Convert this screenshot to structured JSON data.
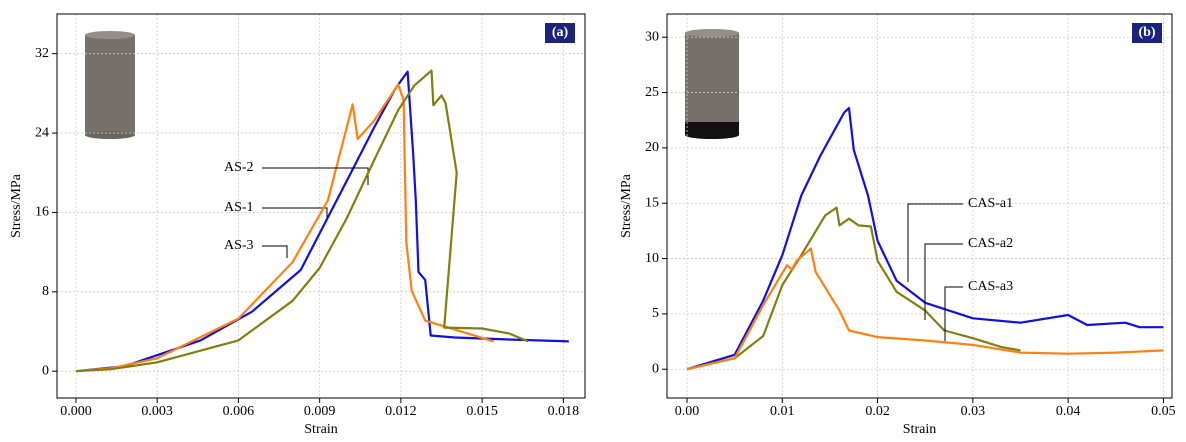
{
  "chart_data": [
    {
      "type": "line",
      "panel_label": "(a)",
      "x_label": "Strain",
      "y_label": "Stress/MPa",
      "xlim": [
        -0.0007,
        0.0188
      ],
      "ylim": [
        -2.7,
        36
      ],
      "xticks": [
        {
          "value": 0,
          "label": "0.000"
        },
        {
          "value": 0.003,
          "label": "0.003"
        },
        {
          "value": 0.006,
          "label": "0.006"
        },
        {
          "value": 0.009,
          "label": "0.009"
        },
        {
          "value": 0.012,
          "label": "0.012"
        },
        {
          "value": 0.015,
          "label": "0.015"
        },
        {
          "value": 0.018,
          "label": "0.018"
        }
      ],
      "yticks": [
        0,
        8,
        16,
        24,
        32
      ],
      "grid": true,
      "series": [
        {
          "name": "AS-1",
          "color": "#1010e0",
          "x": [
            0,
            0.0018,
            0.0046,
            0.0065,
            0.0083,
            0.0101,
            0.011,
            0.0118,
            0.01225,
            0.01245,
            0.01255,
            0.01265,
            0.0129,
            0.0131,
            0.014,
            0.016,
            0.0182
          ],
          "values": [
            0,
            0.5,
            3.1,
            6,
            10.2,
            19.7,
            24.5,
            28.5,
            30.2,
            22,
            17.2,
            10,
            9.2,
            3.6,
            3.4,
            3.2,
            3
          ]
        },
        {
          "name": "AS-2",
          "color": "#ff8010",
          "x": [
            0,
            0.0013,
            0.003,
            0.006,
            0.008,
            0.0093,
            0.01022,
            0.0104,
            0.011,
            0.0119,
            0.0121,
            0.0122,
            0.0124,
            0.0129,
            0.01543
          ],
          "values": [
            0,
            0.3,
            1.3,
            5.3,
            11,
            17.2,
            26.9,
            23.4,
            25.2,
            28.9,
            27.3,
            13,
            8.1,
            5.1,
            3
          ]
        },
        {
          "name": "AS-3",
          "color": "#808010",
          "x": [
            0,
            0.0013,
            0.003,
            0.006,
            0.008,
            0.009,
            0.01,
            0.011,
            0.0119,
            0.0125,
            0.01313,
            0.0132,
            0.0135,
            0.01365,
            0.01406,
            0.0136,
            0.015,
            0.016,
            0.0167
          ],
          "values": [
            0,
            0.2,
            0.9,
            3.1,
            7.1,
            10.4,
            15.4,
            21.2,
            26.3,
            28.8,
            30.3,
            26.8,
            27.8,
            27,
            20,
            4.4,
            4.3,
            3.8,
            3
          ]
        }
      ]
    },
    {
      "type": "line",
      "panel_label": "(b)",
      "x_label": "Strain",
      "y_label": "Stress/MPa",
      "xlim": [
        -0.0021,
        0.0509
      ],
      "ylim": [
        -2.6,
        32.1
      ],
      "xticks": [
        {
          "value": 0,
          "label": "0.00"
        },
        {
          "value": 0.01,
          "label": "0.01"
        },
        {
          "value": 0.02,
          "label": "0.02"
        },
        {
          "value": 0.03,
          "label": "0.03"
        },
        {
          "value": 0.04,
          "label": "0.04"
        },
        {
          "value": 0.05,
          "label": "0.05"
        }
      ],
      "yticks": [
        0,
        5,
        10,
        15,
        20,
        25,
        30
      ],
      "grid": true,
      "series": [
        {
          "name": "CAS-a1",
          "color": "#1010e0",
          "x": [
            0,
            0.005,
            0.008,
            0.01,
            0.012,
            0.014,
            0.0165,
            0.017,
            0.0175,
            0.019,
            0.02,
            0.022,
            0.025,
            0.03,
            0.035,
            0.04,
            0.042,
            0.046,
            0.0475,
            0.05
          ],
          "values": [
            0,
            1.3,
            6.2,
            10.3,
            15.7,
            19.3,
            23.2,
            23.6,
            19.8,
            15.7,
            11.6,
            8,
            6,
            4.6,
            4.2,
            4.9,
            4,
            4.2,
            3.8,
            3.8
          ]
        },
        {
          "name": "CAS-a2",
          "color": "#808010",
          "x": [
            0,
            0.005,
            0.008,
            0.01,
            0.012,
            0.0145,
            0.0157,
            0.016,
            0.017,
            0.018,
            0.0193,
            0.02,
            0.022,
            0.025,
            0.027,
            0.03,
            0.033,
            0.035
          ],
          "values": [
            0,
            1,
            3,
            7.6,
            10.3,
            13.9,
            14.6,
            13,
            13.6,
            13,
            12.9,
            9.8,
            7,
            5.3,
            3.5,
            2.8,
            2,
            1.7
          ]
        },
        {
          "name": "CAS-a3",
          "color": "#ff8010",
          "x": [
            0,
            0.005,
            0.008,
            0.0105,
            0.011,
            0.0115,
            0.013,
            0.0135,
            0.015,
            0.016,
            0.017,
            0.02,
            0.025,
            0.03,
            0.035,
            0.04,
            0.045,
            0.05
          ],
          "values": [
            0,
            1,
            5.8,
            9.4,
            9,
            9.8,
            10.9,
            8.8,
            6.7,
            5.3,
            3.5,
            2.9,
            2.6,
            2.2,
            1.5,
            1.4,
            1.5,
            1.7
          ]
        }
      ]
    }
  ]
}
